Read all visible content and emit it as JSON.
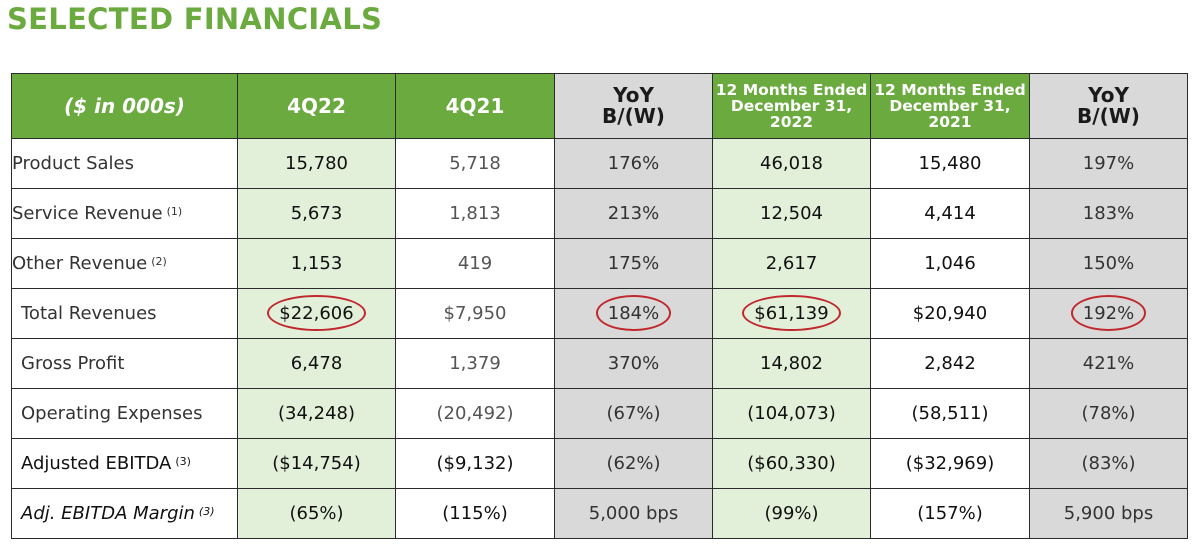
{
  "title": "SELECTED FINANCIALS",
  "colors": {
    "accent_green": "#6aaa3e",
    "pale_green": "#e2efd9",
    "grey": "#d9d9d9",
    "highlight_red": "#c0282d"
  },
  "headers": {
    "label": "($ in 000s)",
    "q4_22": "4Q22",
    "q4_21": "4Q21",
    "yoy1": [
      "YoY",
      "B/(W)"
    ],
    "fy22": [
      "12 Months Ended",
      "December 31,",
      "2022"
    ],
    "fy21": [
      "12 Months Ended",
      "December 31,",
      "2021"
    ],
    "yoy2": [
      "YoY",
      "B/(W)"
    ]
  },
  "rows": [
    {
      "label": "Product Sales",
      "note": "",
      "values": [
        "15,780",
        "5,718",
        "176%",
        "46,018",
        "15,480",
        "197%"
      ]
    },
    {
      "label": "Service Revenue",
      "note": "(1)",
      "values": [
        "5,673",
        "1,813",
        "213%",
        "12,504",
        "4,414",
        "183%"
      ]
    },
    {
      "label": "Other Revenue",
      "note": "(2)",
      "values": [
        "1,153",
        "419",
        "175%",
        "2,617",
        "1,046",
        "150%"
      ]
    },
    {
      "label": "Total Revenues",
      "note": "",
      "values": [
        "$22,606",
        "$7,950",
        "184%",
        "$61,139",
        "$20,940",
        "192%"
      ]
    },
    {
      "label": "Gross Profit",
      "note": "",
      "values": [
        "6,478",
        "1,379",
        "370%",
        "14,802",
        "2,842",
        "421%"
      ]
    },
    {
      "label": "Operating Expenses",
      "note": "",
      "values": [
        "(34,248)",
        "(20,492)",
        "(67%)",
        "(104,073)",
        "(58,511)",
        "(78%)"
      ]
    },
    {
      "label": "Adjusted EBITDA",
      "note": "(3)",
      "values": [
        "($14,754)",
        "($9,132)",
        "(62%)",
        "($60,330)",
        "($32,969)",
        "(83%)"
      ]
    },
    {
      "label": "Adj. EBITDA Margin",
      "note": "(3)",
      "values": [
        "(65%)",
        "(115%)",
        "5,000 bps",
        "(99%)",
        "(157%)",
        "5,900 bps"
      ]
    }
  ]
}
